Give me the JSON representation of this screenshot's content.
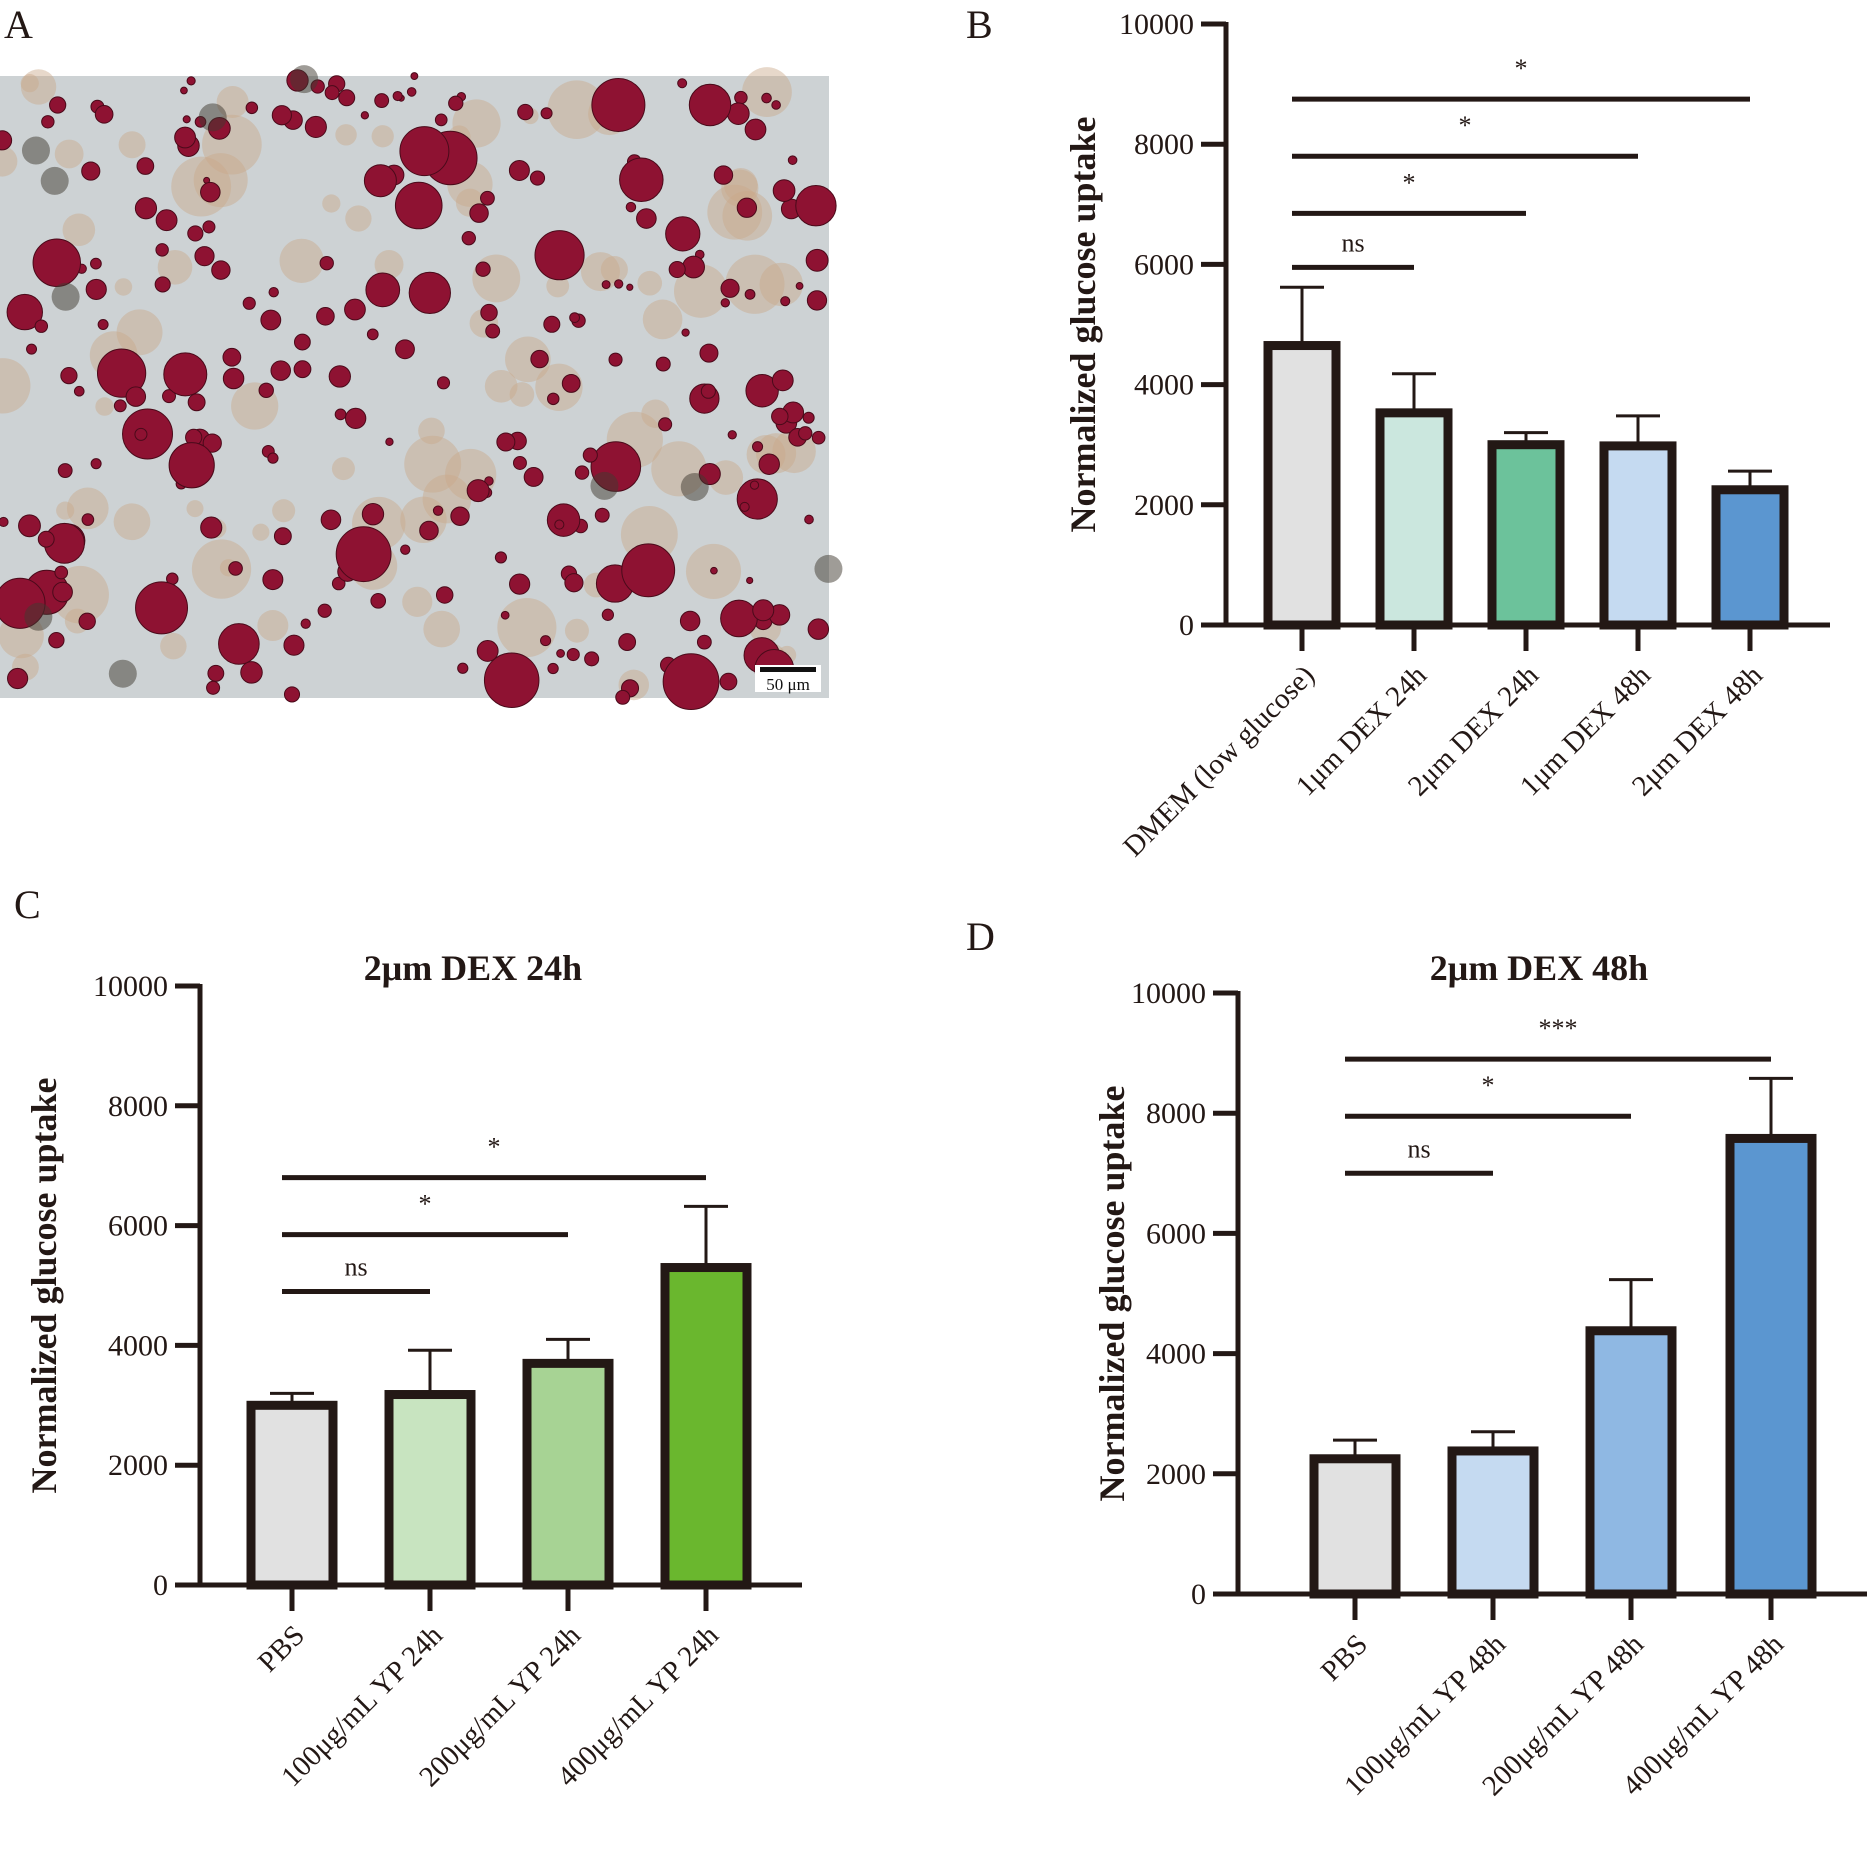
{
  "panels": {
    "a": "A",
    "b": "B",
    "c": "C",
    "d": "D"
  },
  "micrograph": {
    "scale_bar_label": "50 μm",
    "background": "#cdd2d4",
    "droplet_color": "#8e1232"
  },
  "chart_data": [
    {
      "id": "b",
      "type": "bar",
      "title": "",
      "ylabel": "Normalized glucose uptake",
      "xlabel": "",
      "ylim": [
        0,
        10000
      ],
      "yticks": [
        0,
        2000,
        4000,
        6000,
        8000,
        10000
      ],
      "grid": false,
      "categories": [
        "DMEM (low glucose)",
        "1μm DEX 24h",
        "2μm DEX 24h",
        "1μm DEX 48h",
        "2μm DEX 48h"
      ],
      "values": [
        4650,
        3530,
        3000,
        2980,
        2250
      ],
      "error_upper": [
        5620,
        4180,
        3200,
        3480,
        2560
      ],
      "colors": [
        "#e1e1e1",
        "#cbe7de",
        "#6cc29b",
        "#c5daf1",
        "#5b96d0"
      ],
      "significance": [
        {
          "from": 0,
          "to": 1,
          "label": "ns",
          "y": 5950
        },
        {
          "from": 0,
          "to": 2,
          "label": "*",
          "y": 6850
        },
        {
          "from": 0,
          "to": 3,
          "label": "*",
          "y": 7800
        },
        {
          "from": 0,
          "to": 4,
          "label": "*",
          "y": 8750
        }
      ]
    },
    {
      "id": "c",
      "type": "bar",
      "title": "2μm DEX 24h",
      "ylabel": "Normalized glucose uptake",
      "xlabel": "",
      "ylim": [
        0,
        10000
      ],
      "yticks": [
        0,
        2000,
        4000,
        6000,
        8000,
        10000
      ],
      "grid": false,
      "categories": [
        "PBS",
        "100μg/mL YP 24h",
        "200μg/mL YP 24h",
        "400μg/mL YP 24h"
      ],
      "values": [
        3000,
        3180,
        3700,
        5300
      ],
      "error_upper": [
        3200,
        3920,
        4100,
        6320
      ],
      "colors": [
        "#e1e1e1",
        "#c8e4c0",
        "#a7d394",
        "#6ab72e"
      ],
      "significance": [
        {
          "from": 0,
          "to": 1,
          "label": "ns",
          "y": 4900
        },
        {
          "from": 0,
          "to": 2,
          "label": "*",
          "y": 5850
        },
        {
          "from": 0,
          "to": 3,
          "label": "*",
          "y": 6800
        }
      ]
    },
    {
      "id": "d",
      "type": "bar",
      "title": "2μm DEX 48h",
      "ylabel": "Normalized glucose uptake",
      "xlabel": "",
      "ylim": [
        0,
        10000
      ],
      "yticks": [
        0,
        2000,
        4000,
        6000,
        8000,
        10000
      ],
      "grid": false,
      "categories": [
        "PBS",
        "100μg/mL YP 48h",
        "200μg/mL YP 48h",
        "400μg/mL YP 48h"
      ],
      "values": [
        2250,
        2380,
        4380,
        7580
      ],
      "error_upper": [
        2560,
        2700,
        5230,
        8580
      ],
      "colors": [
        "#e1e1e1",
        "#c5daf1",
        "#8fb8e3",
        "#5b96d0"
      ],
      "significance": [
        {
          "from": 0,
          "to": 1,
          "label": "ns",
          "y": 7000
        },
        {
          "from": 0,
          "to": 2,
          "label": "*",
          "y": 7950
        },
        {
          "from": 0,
          "to": 3,
          "label": "***",
          "y": 8900
        }
      ]
    }
  ]
}
